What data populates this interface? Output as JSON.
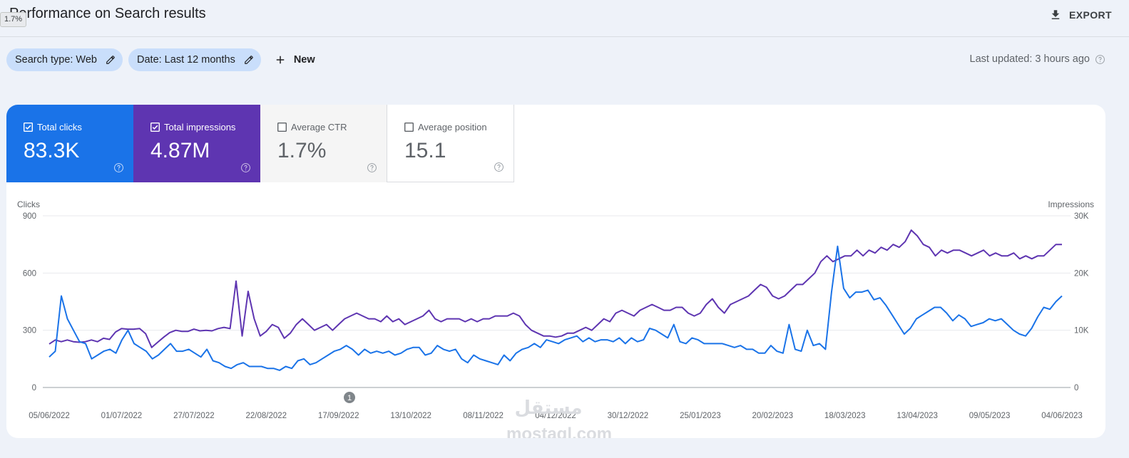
{
  "header": {
    "title": "Performance on Search results",
    "tooltip": "1.7%",
    "export_label": "EXPORT"
  },
  "filters": {
    "search_type": "Search type: Web",
    "date": "Date: Last 12 months",
    "new_label": "New",
    "last_updated": "Last updated: 3 hours ago"
  },
  "metrics": [
    {
      "label": "Total clicks",
      "value": "83.3K",
      "checked": true
    },
    {
      "label": "Total impressions",
      "value": "4.87M",
      "checked": true
    },
    {
      "label": "Average CTR",
      "value": "1.7%",
      "checked": false
    },
    {
      "label": "Average position",
      "value": "15.1",
      "checked": false
    }
  ],
  "colors": {
    "clicks": "#1a73e8",
    "impressions": "#5e35b1",
    "accent_chip": "#c9defb"
  },
  "icons": [
    "download-icon",
    "pencil-icon",
    "plus-icon",
    "help-icon",
    "checkbox-icon"
  ],
  "annotation_marker": "1",
  "watermark": {
    "arabic": "مستقل",
    "latin": "mostaql.com"
  },
  "chart_data": {
    "type": "line",
    "ylabel_left": "Clicks",
    "ylabel_right": "Impressions",
    "y_left_ticks": [
      "900",
      "600",
      "300",
      "0"
    ],
    "y_right_ticks": [
      "30K",
      "20K",
      "10K",
      "0"
    ],
    "ylim_left": [
      0,
      900
    ],
    "ylim_right": [
      0,
      30000
    ],
    "x_ticks": [
      "05/06/2022",
      "01/07/2022",
      "27/07/2022",
      "22/08/2022",
      "17/09/2022",
      "13/10/2022",
      "08/11/2022",
      "04/12/2022",
      "30/12/2022",
      "25/01/2023",
      "20/02/2023",
      "18/03/2023",
      "13/04/2023",
      "09/05/2023",
      "04/06/2023"
    ],
    "grid": true,
    "series": [
      {
        "name": "Clicks",
        "axis": "left",
        "values": [
          160,
          190,
          480,
          360,
          300,
          240,
          230,
          150,
          170,
          190,
          200,
          180,
          250,
          300,
          230,
          210,
          190,
          150,
          170,
          200,
          230,
          190,
          190,
          200,
          180,
          160,
          200,
          140,
          130,
          110,
          100,
          120,
          130,
          110,
          110,
          110,
          100,
          100,
          90,
          110,
          100,
          140,
          150,
          120,
          130,
          150,
          170,
          190,
          200,
          220,
          200,
          170,
          200,
          180,
          190,
          180,
          190,
          170,
          180,
          200,
          210,
          210,
          170,
          180,
          220,
          200,
          190,
          200,
          150,
          130,
          170,
          150,
          140,
          130,
          120,
          170,
          140,
          180,
          200,
          210,
          230,
          210,
          250,
          240,
          230,
          250,
          260,
          270,
          240,
          260,
          240,
          250,
          250,
          240,
          260,
          230,
          260,
          240,
          250,
          310,
          300,
          280,
          260,
          330,
          240,
          230,
          260,
          250,
          230,
          230,
          230,
          230,
          220,
          210,
          220,
          200,
          200,
          180,
          180,
          220,
          190,
          180,
          330,
          200,
          190,
          300,
          220,
          230,
          200,
          500,
          740,
          520,
          470,
          500,
          500,
          510,
          460,
          470,
          430,
          380,
          330,
          280,
          310,
          360,
          380,
          400,
          420,
          420,
          390,
          350,
          380,
          360,
          320,
          330,
          340,
          360,
          350,
          360,
          330,
          300,
          280,
          270,
          310,
          370,
          420,
          410,
          450,
          480
        ]
      },
      {
        "name": "Impressions",
        "axis": "right",
        "values": [
          7600,
          8300,
          8000,
          8300,
          8000,
          7900,
          8000,
          8300,
          8000,
          8600,
          8400,
          9700,
          10300,
          10200,
          10200,
          10300,
          9400,
          7000,
          7900,
          8800,
          9600,
          10000,
          9800,
          9800,
          10200,
          9900,
          10000,
          9900,
          10300,
          10500,
          10300,
          18600,
          9000,
          16800,
          12000,
          9000,
          9800,
          11000,
          10500,
          8600,
          9500,
          11000,
          12000,
          11000,
          10000,
          10500,
          11000,
          10000,
          11000,
          12000,
          12500,
          13000,
          12500,
          12000,
          12000,
          11500,
          12500,
          11500,
          12000,
          11000,
          11500,
          12000,
          12500,
          13500,
          12000,
          11500,
          12000,
          12000,
          12000,
          11500,
          12000,
          11500,
          12000,
          12000,
          12500,
          12500,
          12500,
          13000,
          12500,
          11000,
          10000,
          9500,
          9000,
          9000,
          8800,
          9000,
          9500,
          9500,
          10000,
          10500,
          10000,
          11000,
          12000,
          11500,
          13000,
          13500,
          13000,
          12500,
          13500,
          14000,
          14500,
          14000,
          13500,
          13500,
          14000,
          14000,
          13000,
          12500,
          13000,
          14500,
          15500,
          14000,
          13000,
          14500,
          15000,
          15500,
          16000,
          17000,
          18000,
          17500,
          16000,
          15500,
          16000,
          17000,
          18000,
          18000,
          19000,
          20000,
          22000,
          23000,
          22000,
          22500,
          23000,
          23000,
          24000,
          23000,
          24000,
          23500,
          24500,
          24000,
          25000,
          24500,
          25500,
          27500,
          26500,
          25000,
          24500,
          23000,
          24000,
          23500,
          24000,
          24000,
          23500,
          23000,
          23500,
          24000,
          23000,
          23500,
          23000,
          23000,
          23500,
          22500,
          23000,
          22500,
          23000,
          23000,
          24000,
          25000,
          25000
        ]
      }
    ]
  }
}
